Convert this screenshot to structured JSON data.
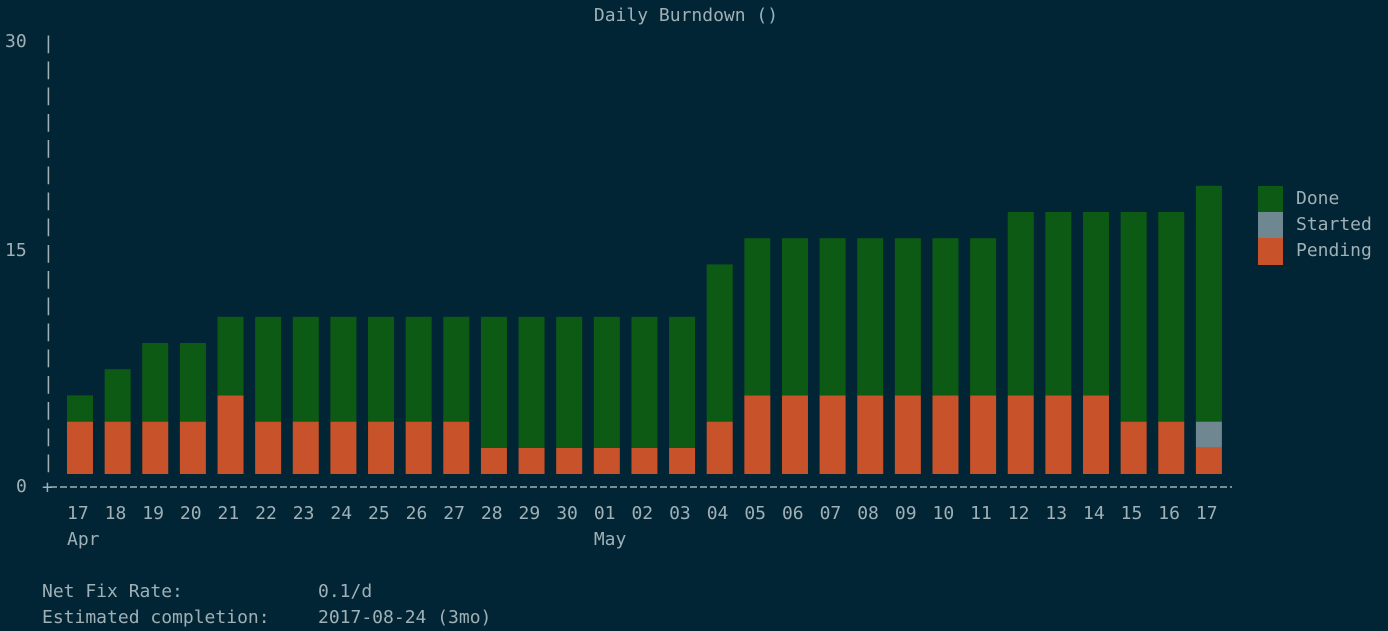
{
  "chart_data": {
    "type": "bar",
    "stacked": true,
    "title": "Daily Burndown ()",
    "xlabel": "",
    "ylabel": "",
    "ylim": [
      0,
      30
    ],
    "yticks": [
      "30",
      "15",
      "0"
    ],
    "categories": [
      "17",
      "18",
      "19",
      "20",
      "21",
      "22",
      "23",
      "24",
      "25",
      "26",
      "27",
      "28",
      "29",
      "30",
      "01",
      "02",
      "03",
      "04",
      "05",
      "06",
      "07",
      "08",
      "09",
      "10",
      "11",
      "12",
      "13",
      "14",
      "15",
      "16",
      "17"
    ],
    "month_labels": [
      {
        "index": 0,
        "label": "Apr"
      },
      {
        "index": 14,
        "label": "May"
      }
    ],
    "series": [
      {
        "name": "Pending",
        "color": "#c8522a",
        "values": [
          4,
          4,
          4,
          4,
          5,
          4,
          4,
          4,
          4,
          4,
          4,
          2,
          2,
          2,
          2,
          2,
          2,
          4,
          5,
          5,
          5,
          5,
          5,
          5,
          5,
          5,
          5,
          5,
          4,
          4,
          2
        ]
      },
      {
        "name": "Started",
        "color": "#6e8791",
        "values": [
          0,
          0,
          0,
          0,
          0,
          0,
          0,
          0,
          0,
          0,
          0,
          0,
          0,
          0,
          0,
          0,
          0,
          0,
          0,
          0,
          0,
          0,
          0,
          0,
          0,
          0,
          0,
          0,
          0,
          0,
          2
        ]
      },
      {
        "name": "Done",
        "color": "#0d5a14",
        "values": [
          1,
          3,
          5,
          5,
          6,
          7,
          7,
          7,
          7,
          7,
          7,
          9,
          9,
          9,
          9,
          9,
          9,
          10,
          11,
          11,
          11,
          11,
          11,
          11,
          11,
          13,
          13,
          13,
          14,
          14,
          15
        ]
      }
    ],
    "legend_position": "right",
    "grid": false
  },
  "stats": {
    "net_fix_rate_label": "Net Fix Rate:",
    "net_fix_rate_value": "0.1/d",
    "estimated_completion_label": "Estimated completion:",
    "estimated_completion_value": "2017-08-24 (3mo)"
  }
}
